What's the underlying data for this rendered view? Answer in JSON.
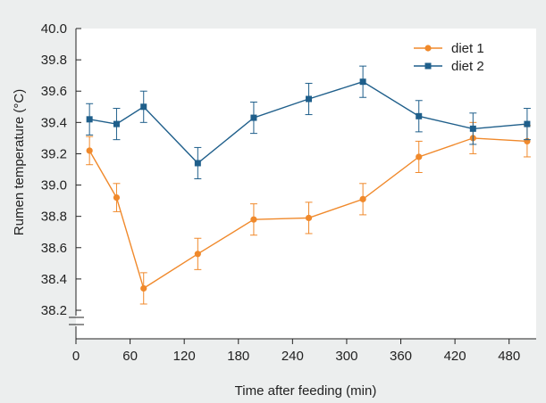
{
  "chart_data": {
    "type": "line",
    "xlabel": "Time after feeding (min)",
    "ylabel": "Rumen temperature (°C)",
    "xlim": [
      0,
      510
    ],
    "ylim": [
      38.1,
      40.0
    ],
    "xticks": [
      0,
      60,
      120,
      180,
      240,
      300,
      360,
      420,
      480
    ],
    "xtick_labels": [
      "0",
      "60",
      "120",
      "180",
      "240",
      "300",
      "360",
      "420",
      "480"
    ],
    "yticks": [
      38.2,
      38.4,
      38.6,
      38.8,
      39.0,
      39.2,
      39.4,
      39.6,
      39.8,
      40.0
    ],
    "ytick_labels": [
      "38.2",
      "38.4",
      "38.6",
      "38.8",
      "39.0",
      "39.2",
      "39.4",
      "39.6",
      "39.8",
      "40.0"
    ],
    "y_axis_break": true,
    "grid": false,
    "legend_position": "top-right",
    "series": [
      {
        "name": "diet 1",
        "color": "#f0892b",
        "marker": "circle",
        "x": [
          15,
          45,
          75,
          135,
          197,
          258,
          318,
          380,
          440,
          500
        ],
        "y": [
          39.22,
          38.92,
          38.34,
          38.56,
          38.78,
          38.79,
          38.91,
          39.18,
          39.3,
          39.28
        ],
        "err": [
          0.09,
          0.09,
          0.1,
          0.1,
          0.1,
          0.1,
          0.1,
          0.1,
          0.1,
          0.1
        ]
      },
      {
        "name": "diet 2",
        "color": "#1f5f8b",
        "marker": "square",
        "x": [
          15,
          45,
          75,
          135,
          197,
          258,
          318,
          380,
          440,
          500
        ],
        "y": [
          39.42,
          39.39,
          39.5,
          39.14,
          39.43,
          39.55,
          39.66,
          39.44,
          39.36,
          39.39
        ],
        "err": [
          0.1,
          0.1,
          0.1,
          0.1,
          0.1,
          0.1,
          0.1,
          0.1,
          0.1,
          0.1
        ]
      }
    ]
  }
}
